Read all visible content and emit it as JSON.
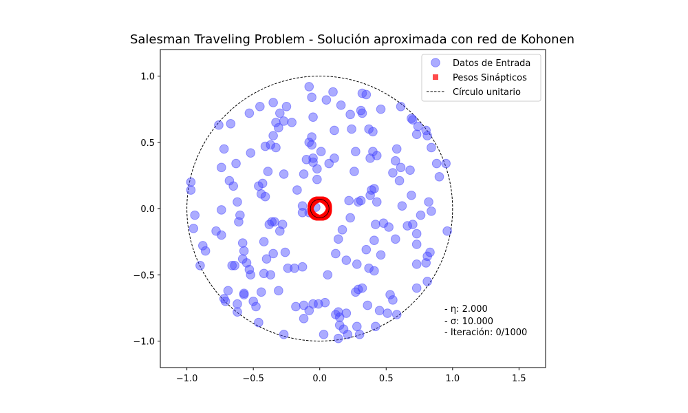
{
  "chart_data": {
    "type": "scatter",
    "title": "Salesman Traveling Problem - Solución aproximada con red de Kohonen",
    "xlabel": "",
    "ylabel": "",
    "xlim": [
      -1.2,
      1.7
    ],
    "ylim": [
      -1.2,
      1.2
    ],
    "xticks": [
      "−1.0",
      "−0.5",
      "0.0",
      "0.5",
      "1.0",
      "1.5"
    ],
    "xtick_values": [
      -1.0,
      -0.5,
      0.0,
      0.5,
      1.0,
      1.5
    ],
    "yticks": [
      "−1.0",
      "−0.5",
      "0.0",
      "0.5",
      "1.0"
    ],
    "ytick_values": [
      -1.0,
      -0.5,
      0.0,
      0.5,
      1.0
    ],
    "grid": false,
    "legend_position": "upper right",
    "legend": {
      "input": "Datos de Entrada",
      "weights": "Pesos Sinápticos",
      "circle": "Círculo unitario"
    },
    "colors": {
      "input": "#4444ff",
      "weights": "#ff0000",
      "circle": "#000000"
    },
    "unit_circle_radius": 1.0,
    "weights_ring_radius": 0.07,
    "annotations": {
      "eta": "- η: 2.000",
      "sigma": "- σ: 10.000",
      "iteration": "- Iteración: 0/1000"
    },
    "series": [
      {
        "name": "Datos de Entrada",
        "points": [
          [
            -0.97,
            0.2
          ],
          [
            -0.97,
            0.14
          ],
          [
            -0.94,
            -0.05
          ],
          [
            -0.95,
            -0.15
          ],
          [
            -0.88,
            -0.28
          ],
          [
            -0.86,
            -0.32
          ],
          [
            -0.9,
            -0.43
          ],
          [
            -0.76,
            0.63
          ],
          [
            -0.74,
            0.31
          ],
          [
            -0.72,
            0.45
          ],
          [
            -0.67,
            0.64
          ],
          [
            -0.63,
            0.34
          ],
          [
            -0.68,
            0.21
          ],
          [
            -0.65,
            0.17
          ],
          [
            -0.62,
            0.05
          ],
          [
            -0.6,
            -0.05
          ],
          [
            -0.61,
            -0.1
          ],
          [
            -0.74,
            -0.01
          ],
          [
            -0.78,
            -0.17
          ],
          [
            -0.74,
            -0.2
          ],
          [
            -0.58,
            -0.26
          ],
          [
            -0.57,
            -0.32
          ],
          [
            -0.58,
            -0.38
          ],
          [
            -0.55,
            -0.41
          ],
          [
            -0.53,
            -0.46
          ],
          [
            -0.52,
            -0.5
          ],
          [
            -0.66,
            -0.43
          ],
          [
            -0.64,
            -0.43
          ],
          [
            -0.72,
            -0.68
          ],
          [
            -0.71,
            -0.7
          ],
          [
            -0.69,
            -0.62
          ],
          [
            -0.62,
            -0.72
          ],
          [
            -0.62,
            -0.78
          ],
          [
            -0.57,
            -0.65
          ],
          [
            -0.57,
            -0.64
          ],
          [
            -0.5,
            -0.7
          ],
          [
            -0.48,
            -0.74
          ],
          [
            -0.44,
            -0.63
          ],
          [
            -0.46,
            -0.86
          ],
          [
            -0.27,
            -0.95
          ],
          [
            -0.53,
            0.72
          ],
          [
            -0.45,
            0.77
          ],
          [
            -0.35,
            0.8
          ],
          [
            -0.3,
            0.72
          ],
          [
            -0.25,
            0.77
          ],
          [
            -0.33,
            0.65
          ],
          [
            -0.31,
            0.61
          ],
          [
            -0.27,
            0.66
          ],
          [
            -0.21,
            0.65
          ],
          [
            -0.35,
            0.55
          ],
          [
            -0.41,
            0.47
          ],
          [
            -0.37,
            0.48
          ],
          [
            -0.33,
            0.46
          ],
          [
            -0.52,
            0.42
          ],
          [
            -0.39,
            0.28
          ],
          [
            -0.27,
            0.26
          ],
          [
            -0.46,
            0.17
          ],
          [
            -0.43,
            0.19
          ],
          [
            -0.44,
            0.11
          ],
          [
            -0.41,
            0.09
          ],
          [
            -0.17,
            0.14
          ],
          [
            -0.36,
            -0.1
          ],
          [
            -0.34,
            -0.1
          ],
          [
            -0.38,
            -0.12
          ],
          [
            -0.3,
            -0.17
          ],
          [
            -0.28,
            -0.12
          ],
          [
            -0.26,
            -0.33
          ],
          [
            -0.35,
            -0.34
          ],
          [
            -0.4,
            -0.38
          ],
          [
            -0.42,
            -0.25
          ],
          [
            -0.37,
            -0.5
          ],
          [
            -0.31,
            -0.62
          ],
          [
            -0.24,
            -0.45
          ],
          [
            -0.19,
            -0.45
          ],
          [
            -0.13,
            -0.44
          ],
          [
            -0.42,
            -0.49
          ],
          [
            -0.08,
            0.92
          ],
          [
            -0.06,
            0.84
          ],
          [
            0.05,
            0.82
          ],
          [
            0.1,
            0.88
          ],
          [
            0.16,
            0.78
          ],
          [
            0.23,
            0.71
          ],
          [
            0.32,
            0.87
          ],
          [
            0.35,
            0.86
          ],
          [
            0.31,
            0.74
          ],
          [
            0.32,
            0.72
          ],
          [
            0.46,
            0.75
          ],
          [
            0.61,
            0.77
          ],
          [
            0.7,
            0.67
          ],
          [
            0.69,
            0.68
          ],
          [
            0.74,
            0.62
          ],
          [
            0.8,
            0.59
          ],
          [
            0.81,
            0.55
          ],
          [
            0.73,
            0.56
          ],
          [
            0.84,
            0.46
          ],
          [
            0.88,
            0.34
          ],
          [
            0.95,
            0.34
          ],
          [
            0.9,
            0.24
          ],
          [
            0.96,
            -0.17
          ],
          [
            0.84,
            -0.02
          ],
          [
            0.82,
            0.05
          ],
          [
            0.76,
            -0.05
          ],
          [
            0.7,
            -0.12
          ],
          [
            0.73,
            -0.19
          ],
          [
            0.73,
            -0.27
          ],
          [
            0.83,
            -0.33
          ],
          [
            0.81,
            -0.36
          ],
          [
            0.8,
            -0.41
          ],
          [
            0.73,
            -0.42
          ],
          [
            0.81,
            -0.55
          ],
          [
            0.73,
            -0.6
          ],
          [
            0.58,
            -0.8
          ],
          [
            0.51,
            -0.79
          ],
          [
            0.45,
            -0.77
          ],
          [
            0.53,
            -0.65
          ],
          [
            0.55,
            -0.69
          ],
          [
            0.36,
            -0.73
          ],
          [
            0.42,
            -0.89
          ],
          [
            0.3,
            -0.95
          ],
          [
            0.28,
            -0.89
          ],
          [
            0.2,
            -0.79
          ],
          [
            0.18,
            -0.91
          ],
          [
            0.15,
            -0.88
          ],
          [
            0.14,
            -0.98
          ],
          [
            0.21,
            -0.95
          ],
          [
            0.03,
            -0.95
          ],
          [
            0.15,
            -0.82
          ],
          [
            0.12,
            -0.8
          ],
          [
            0.14,
            -0.78
          ],
          [
            0.04,
            -0.71
          ],
          [
            -0.01,
            -0.72
          ],
          [
            -0.05,
            -0.72
          ],
          [
            -0.08,
            -0.77
          ],
          [
            -0.12,
            -0.83
          ],
          [
            -0.18,
            -0.74
          ],
          [
            -0.12,
            -0.73
          ],
          [
            0.06,
            -0.5
          ],
          [
            0.29,
            -0.61
          ],
          [
            0.32,
            -0.6
          ],
          [
            0.27,
            -0.63
          ],
          [
            0.28,
            -0.42
          ],
          [
            0.37,
            -0.45
          ],
          [
            0.41,
            -0.47
          ],
          [
            0.46,
            -0.35
          ],
          [
            0.35,
            -0.31
          ],
          [
            0.41,
            -0.24
          ],
          [
            0.14,
            -0.23
          ],
          [
            0.12,
            -0.34
          ],
          [
            0.2,
            -0.39
          ],
          [
            0.17,
            -0.16
          ],
          [
            0.23,
            -0.07
          ],
          [
            0.22,
            0.06
          ],
          [
            0.29,
            0.05
          ],
          [
            0.31,
            0.06
          ],
          [
            0.38,
            0.1
          ],
          [
            0.43,
            0.05
          ],
          [
            0.39,
            0.14
          ],
          [
            0.41,
            0.15
          ],
          [
            0.26,
            0.28
          ],
          [
            0.24,
            0.6
          ],
          [
            0.11,
            0.59
          ],
          [
            0.37,
            0.6
          ],
          [
            0.4,
            0.58
          ],
          [
            0.4,
            0.43
          ],
          [
            0.43,
            0.4
          ],
          [
            0.38,
            0.38
          ],
          [
            0.27,
            0.43
          ],
          [
            0.57,
            0.36
          ],
          [
            0.61,
            0.31
          ],
          [
            0.55,
            0.27
          ],
          [
            0.6,
            0.21
          ],
          [
            0.68,
            0.29
          ],
          [
            0.69,
            0.1
          ],
          [
            0.62,
            0.02
          ],
          [
            0.58,
            0.45
          ],
          [
            0.48,
            -0.11
          ],
          [
            0.42,
            -0.12
          ],
          [
            0.52,
            -0.14
          ],
          [
            0.57,
            -0.23
          ],
          [
            0.66,
            -0.13
          ],
          [
            -0.06,
            0.54
          ],
          [
            -0.08,
            0.5
          ],
          [
            -0.06,
            0.48
          ],
          [
            -0.05,
            0.38
          ],
          [
            -0.1,
            0.37
          ],
          [
            -0.05,
            0.35
          ],
          [
            -0.02,
            0.3
          ],
          [
            -0.02,
            0.22
          ],
          [
            -0.12,
            0.26
          ],
          [
            0.01,
            0.43
          ],
          [
            0.07,
            0.34
          ],
          [
            0.11,
            0.38
          ],
          [
            -0.05,
            0.69
          ],
          [
            -0.13,
            0.02
          ],
          [
            -0.13,
            -0.03
          ],
          [
            -0.08,
            -0.03
          ],
          [
            -0.03,
            0.01
          ]
        ]
      }
    ]
  }
}
